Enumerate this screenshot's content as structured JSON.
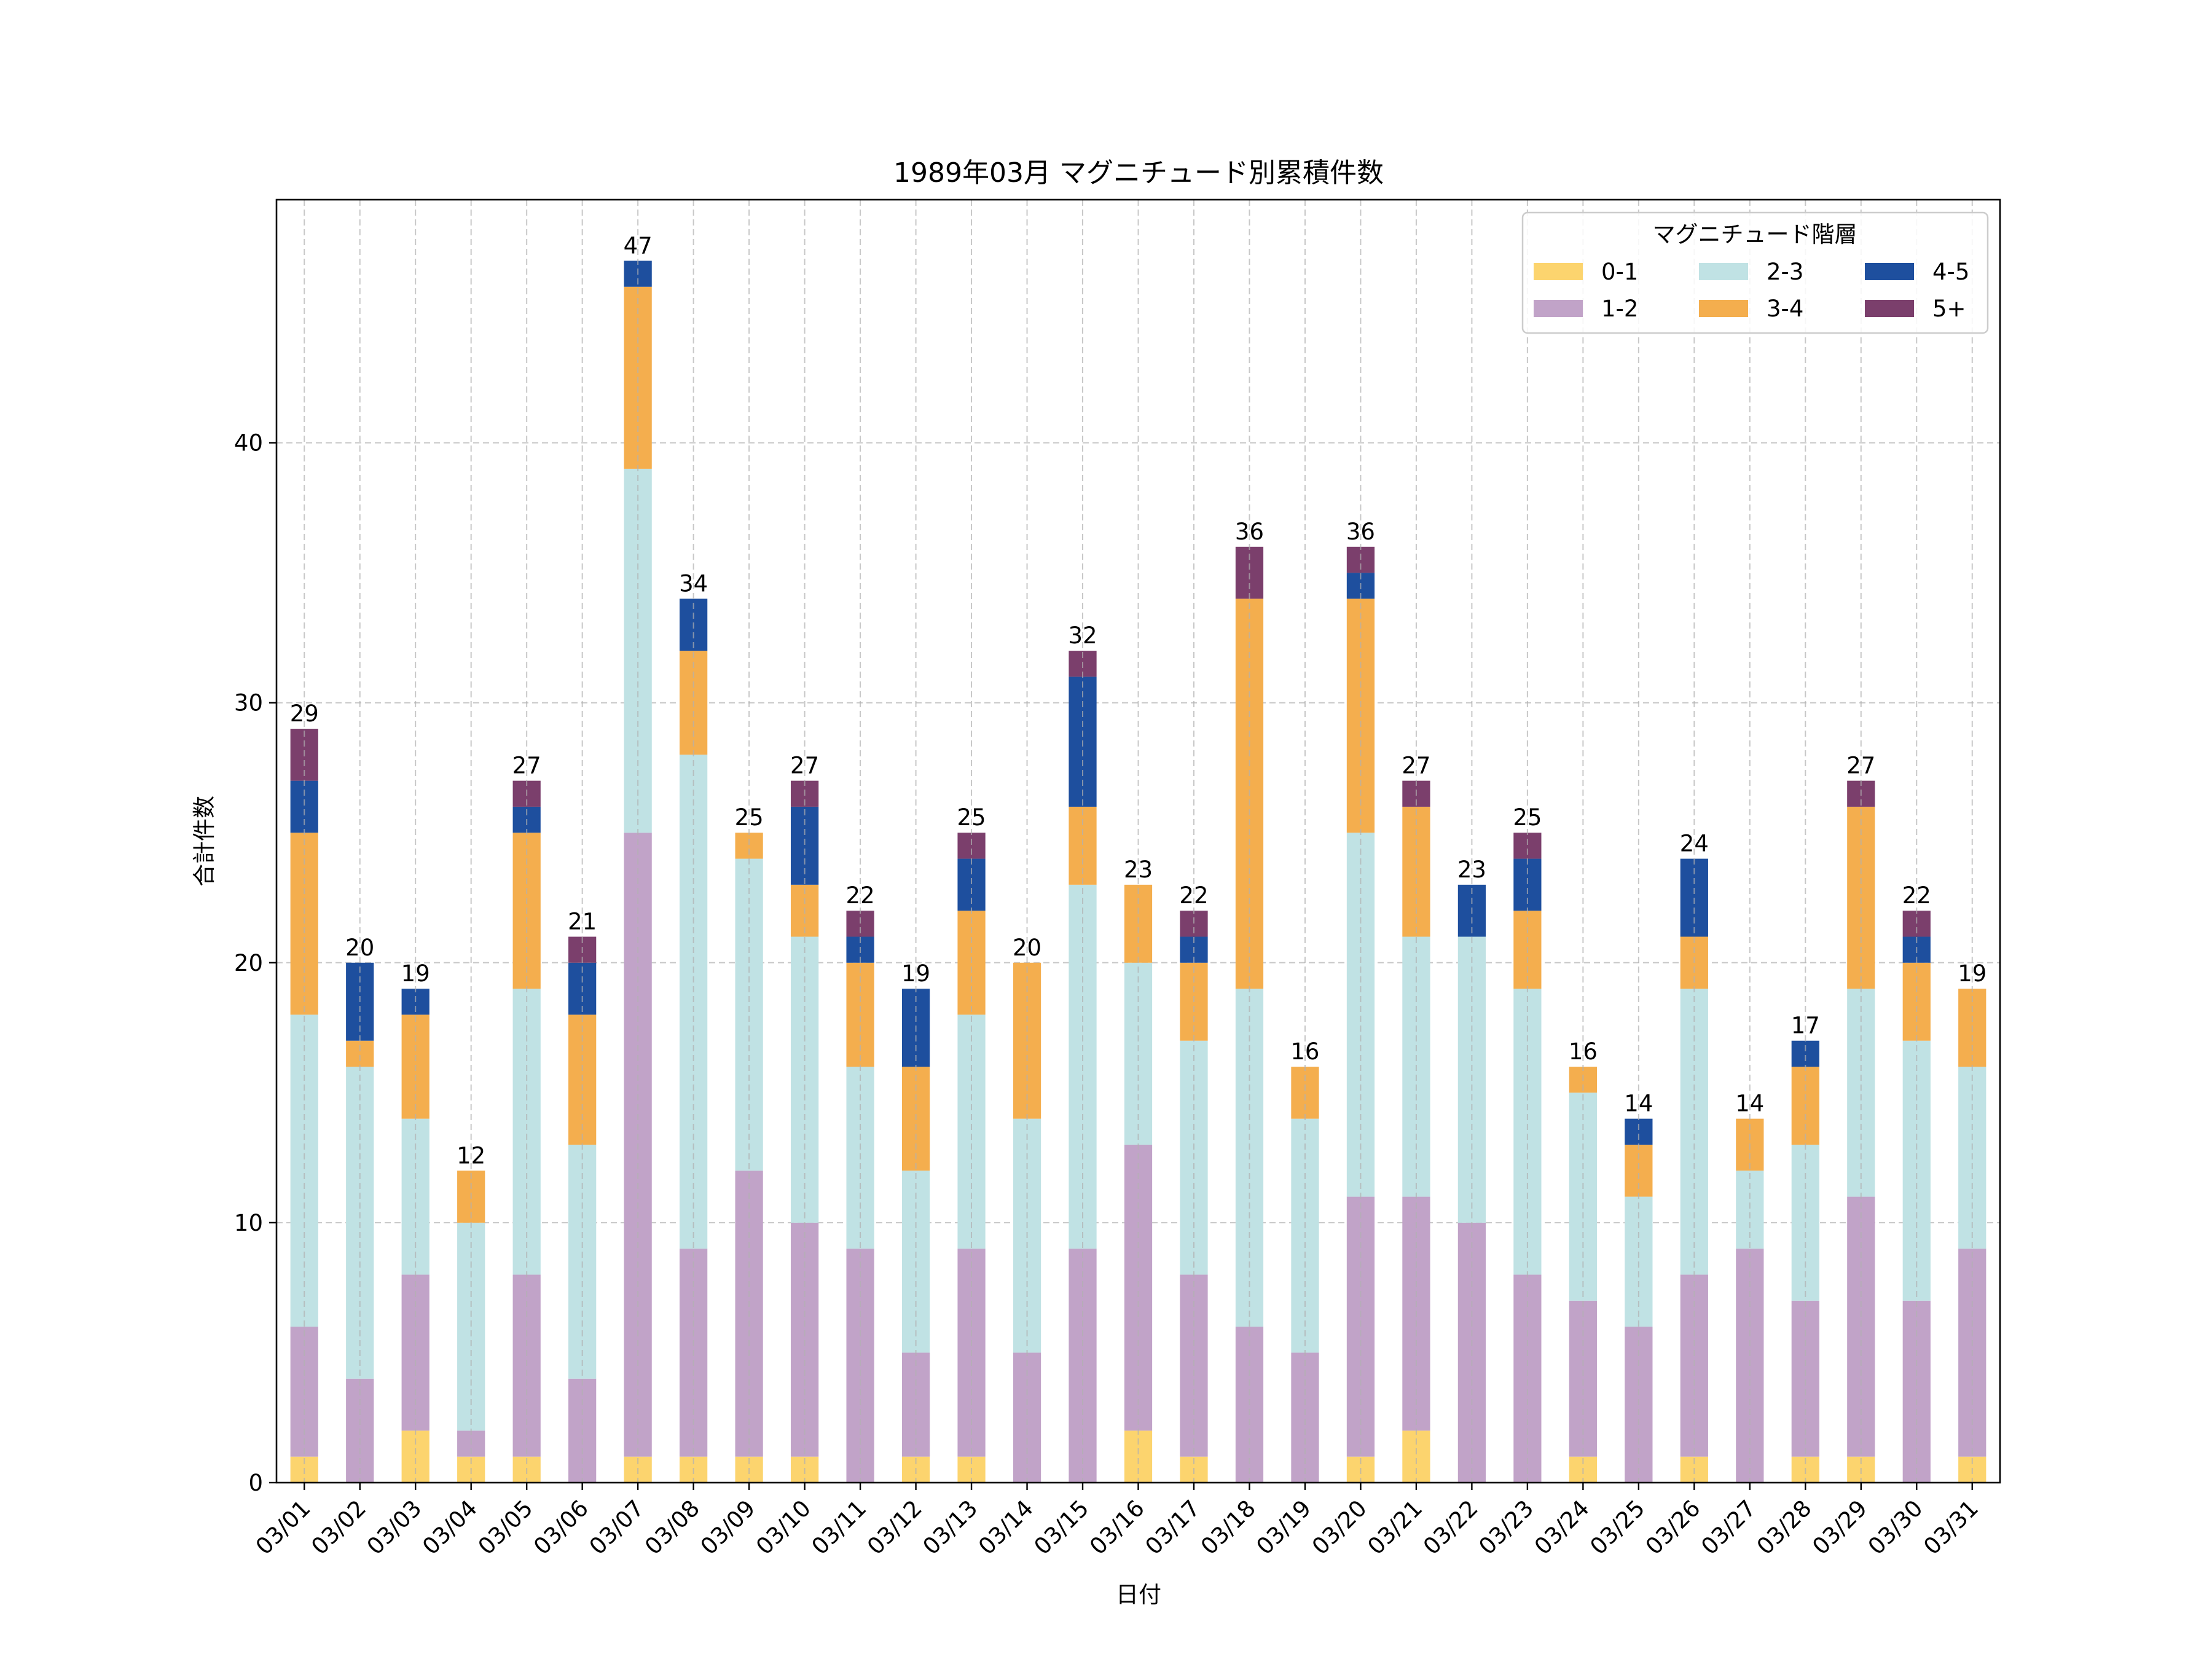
{
  "chart_data": {
    "type": "bar",
    "stacked": true,
    "title": "1989年03月 マグニチュード別累積件数",
    "xlabel": "日付",
    "ylabel": "合計件数",
    "ylim": [
      0,
      49.35
    ],
    "yticks": [
      0,
      10,
      20,
      30,
      40
    ],
    "grid": true,
    "legend": {
      "title": "マグニチュード階層",
      "position": "top-right",
      "columns": 3
    },
    "categories": [
      "03/01",
      "03/02",
      "03/03",
      "03/04",
      "03/05",
      "03/06",
      "03/07",
      "03/08",
      "03/09",
      "03/10",
      "03/11",
      "03/12",
      "03/13",
      "03/14",
      "03/15",
      "03/16",
      "03/17",
      "03/18",
      "03/19",
      "03/20",
      "03/21",
      "03/22",
      "03/23",
      "03/24",
      "03/25",
      "03/26",
      "03/27",
      "03/28",
      "03/29",
      "03/30",
      "03/31"
    ],
    "series": [
      {
        "name": "0-1",
        "color": "#fcd46e",
        "values": [
          1,
          0,
          2,
          1,
          1,
          0,
          1,
          1,
          1,
          1,
          0,
          1,
          1,
          0,
          0,
          2,
          1,
          0,
          0,
          1,
          2,
          0,
          0,
          1,
          0,
          1,
          0,
          1,
          1,
          0,
          1
        ]
      },
      {
        "name": "1-2",
        "color": "#c1a3c8",
        "values": [
          5,
          4,
          6,
          1,
          7,
          4,
          24,
          8,
          11,
          9,
          9,
          4,
          8,
          5,
          9,
          11,
          7,
          6,
          5,
          10,
          9,
          10,
          8,
          6,
          6,
          7,
          9,
          6,
          10,
          7,
          8
        ]
      },
      {
        "name": "2-3",
        "color": "#c0e2e4",
        "values": [
          12,
          12,
          6,
          8,
          11,
          9,
          14,
          19,
          12,
          11,
          7,
          7,
          9,
          9,
          14,
          7,
          9,
          13,
          9,
          14,
          10,
          11,
          11,
          8,
          5,
          11,
          3,
          6,
          8,
          10,
          7
        ]
      },
      {
        "name": "3-4",
        "color": "#f4ae4e",
        "values": [
          7,
          1,
          4,
          2,
          6,
          5,
          7,
          4,
          1,
          2,
          4,
          4,
          4,
          6,
          3,
          3,
          3,
          15,
          2,
          9,
          5,
          0,
          3,
          1,
          2,
          2,
          2,
          3,
          7,
          3,
          3
        ]
      },
      {
        "name": "4-5",
        "color": "#1e4f9e",
        "values": [
          2,
          3,
          1,
          0,
          1,
          2,
          1,
          2,
          0,
          3,
          1,
          3,
          2,
          0,
          5,
          0,
          1,
          0,
          0,
          1,
          0,
          2,
          2,
          0,
          1,
          3,
          0,
          1,
          0,
          1,
          0
        ]
      },
      {
        "name": "5+",
        "color": "#7b3f6c",
        "values": [
          2,
          0,
          0,
          0,
          1,
          1,
          0,
          0,
          0,
          1,
          1,
          0,
          1,
          0,
          1,
          0,
          1,
          2,
          0,
          1,
          1,
          0,
          1,
          0,
          0,
          0,
          0,
          0,
          1,
          1,
          0
        ]
      }
    ],
    "totals": [
      29,
      20,
      19,
      12,
      27,
      21,
      47,
      34,
      25,
      27,
      22,
      19,
      25,
      20,
      32,
      23,
      22,
      36,
      16,
      36,
      27,
      23,
      25,
      16,
      14,
      24,
      14,
      17,
      27,
      22,
      19
    ]
  }
}
